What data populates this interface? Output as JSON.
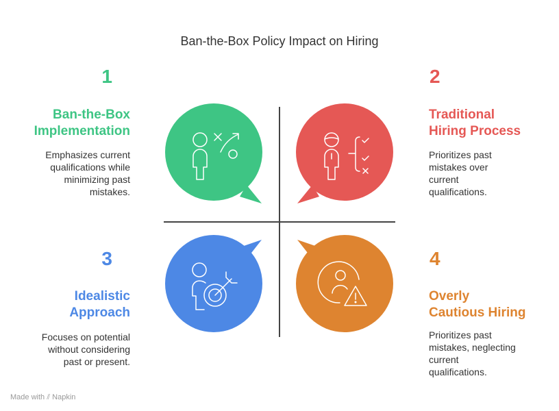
{
  "title": "Ban-the-Box Policy Impact on Hiring",
  "quadrants": [
    {
      "number": "1",
      "heading": [
        "Ban-the-Box",
        "Implementation"
      ],
      "description": [
        "Emphasizes current",
        "qualifications while",
        "minimizing past",
        "mistakes."
      ],
      "color": "#3ec584",
      "icon": "strategy-person-icon"
    },
    {
      "number": "2",
      "heading": [
        "Traditional",
        "Hiring Process"
      ],
      "description": [
        "Prioritizes past",
        "mistakes over",
        "current",
        "qualifications."
      ],
      "color": "#e55855",
      "icon": "person-checklist-icon"
    },
    {
      "number": "3",
      "heading": [
        "Idealistic",
        "Approach"
      ],
      "description": [
        "Focuses on potential",
        "without considering",
        "past or present."
      ],
      "color": "#4d88e5",
      "icon": "person-target-icon"
    },
    {
      "number": "4",
      "heading": [
        "Overly",
        "Cautious Hiring"
      ],
      "description": [
        "Prioritizes past",
        "mistakes, neglecting",
        "current",
        "qualifications."
      ],
      "color": "#de8430",
      "icon": "person-warning-icon"
    }
  ],
  "footer": {
    "made_with": "Made with",
    "brand": "Napkin"
  }
}
